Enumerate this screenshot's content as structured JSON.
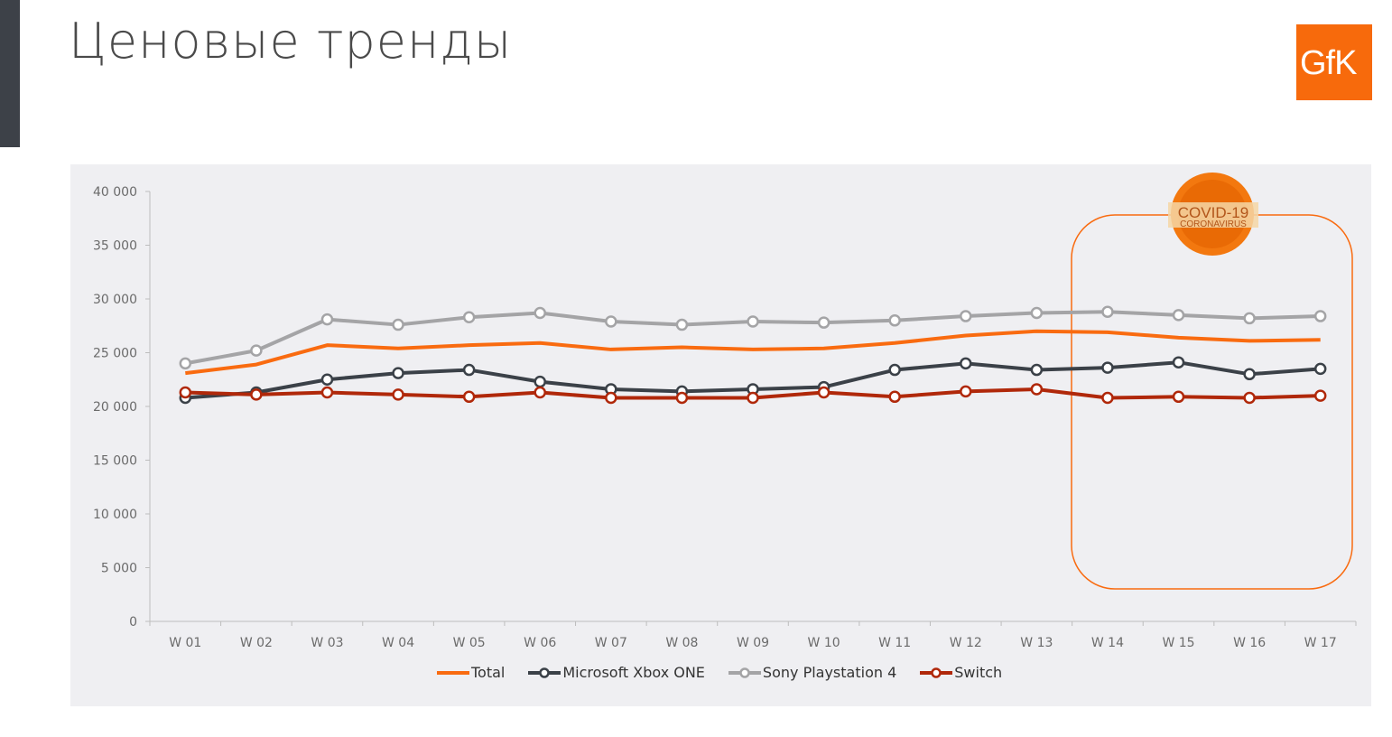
{
  "header": {
    "title": "Ценовые тренды"
  },
  "logo": {
    "text": "GfK",
    "color": "#f76a0c"
  },
  "badge": {
    "line1": "COVID-19",
    "line2": "CORONAVIRUS",
    "highlight_range": [
      "W 14",
      "W 17"
    ]
  },
  "chart_data": {
    "type": "line",
    "categories": [
      "W 01",
      "W 02",
      "W 03",
      "W 04",
      "W 05",
      "W 06",
      "W 07",
      "W 08",
      "W 09",
      "W 10",
      "W 11",
      "W 12",
      "W 13",
      "W 14",
      "W 15",
      "W 16",
      "W 17"
    ],
    "ylim": [
      0,
      40000
    ],
    "yticks": [
      0,
      5000,
      10000,
      15000,
      20000,
      25000,
      30000,
      35000,
      40000
    ],
    "ytick_labels": [
      "0",
      "5 000",
      "10 000",
      "15 000",
      "20 000",
      "25 000",
      "30 000",
      "35 000",
      "40 000"
    ],
    "grid": false,
    "legend_position": "bottom",
    "series": [
      {
        "name": "Total",
        "color": "#f96b10",
        "markers": false,
        "values": [
          23100,
          23900,
          25700,
          25400,
          25700,
          25900,
          25300,
          25500,
          25300,
          25400,
          25900,
          26600,
          27000,
          26900,
          26400,
          26100,
          26200
        ]
      },
      {
        "name": "Microsoft Xbox ONE",
        "color": "#3b4148",
        "markers": true,
        "values": [
          20800,
          21300,
          22500,
          23100,
          23400,
          22300,
          21600,
          21400,
          21600,
          21800,
          23400,
          24000,
          23400,
          23600,
          24100,
          23000,
          23500
        ]
      },
      {
        "name": "Sony Playstation 4",
        "color": "#a4a4a6",
        "markers": true,
        "values": [
          24000,
          25200,
          28100,
          27600,
          28300,
          28700,
          27900,
          27600,
          27900,
          27800,
          28000,
          28400,
          28700,
          28800,
          28500,
          28200,
          28400
        ]
      },
      {
        "name": "Switch",
        "color": "#b0280a",
        "markers": true,
        "values": [
          21300,
          21100,
          21300,
          21100,
          20900,
          21300,
          20800,
          20800,
          20800,
          21300,
          20900,
          21400,
          21600,
          20800,
          20900,
          20800,
          21000
        ]
      }
    ]
  }
}
